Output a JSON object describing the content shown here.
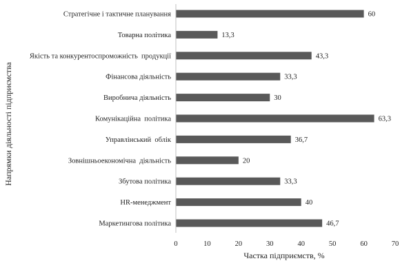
{
  "chart_data": {
    "type": "bar",
    "orientation": "horizontal",
    "categories": [
      "Стратегічне і тактичне планування",
      "Товарна політика",
      "Якість та конкурентоспроможність  продукції",
      "Фінансова діяльність",
      "Виробнича діяльність",
      "Комунікаційна  політика",
      "Управлінський  облік",
      "Зовнішньоекономічна  діяльність",
      "Збутова політика",
      "HR-менеджмент",
      "Маркетингова політика"
    ],
    "values": [
      60,
      13.3,
      43.3,
      33.3,
      30,
      63.3,
      36.7,
      20,
      33.3,
      40,
      46.7
    ],
    "value_labels": [
      "60",
      "13,3",
      "43,3",
      "33,3",
      "30",
      "63,3",
      "36,7",
      "20",
      "33,3",
      "40",
      "46,7"
    ],
    "xlabel": "Частка підприємств, %",
    "ylabel": "Напрямки діяльності підприємства",
    "xlim": [
      0,
      70
    ],
    "xticks": [
      0,
      10,
      20,
      30,
      40,
      50,
      60,
      70
    ],
    "grid": false,
    "bar_color": "#595959"
  }
}
